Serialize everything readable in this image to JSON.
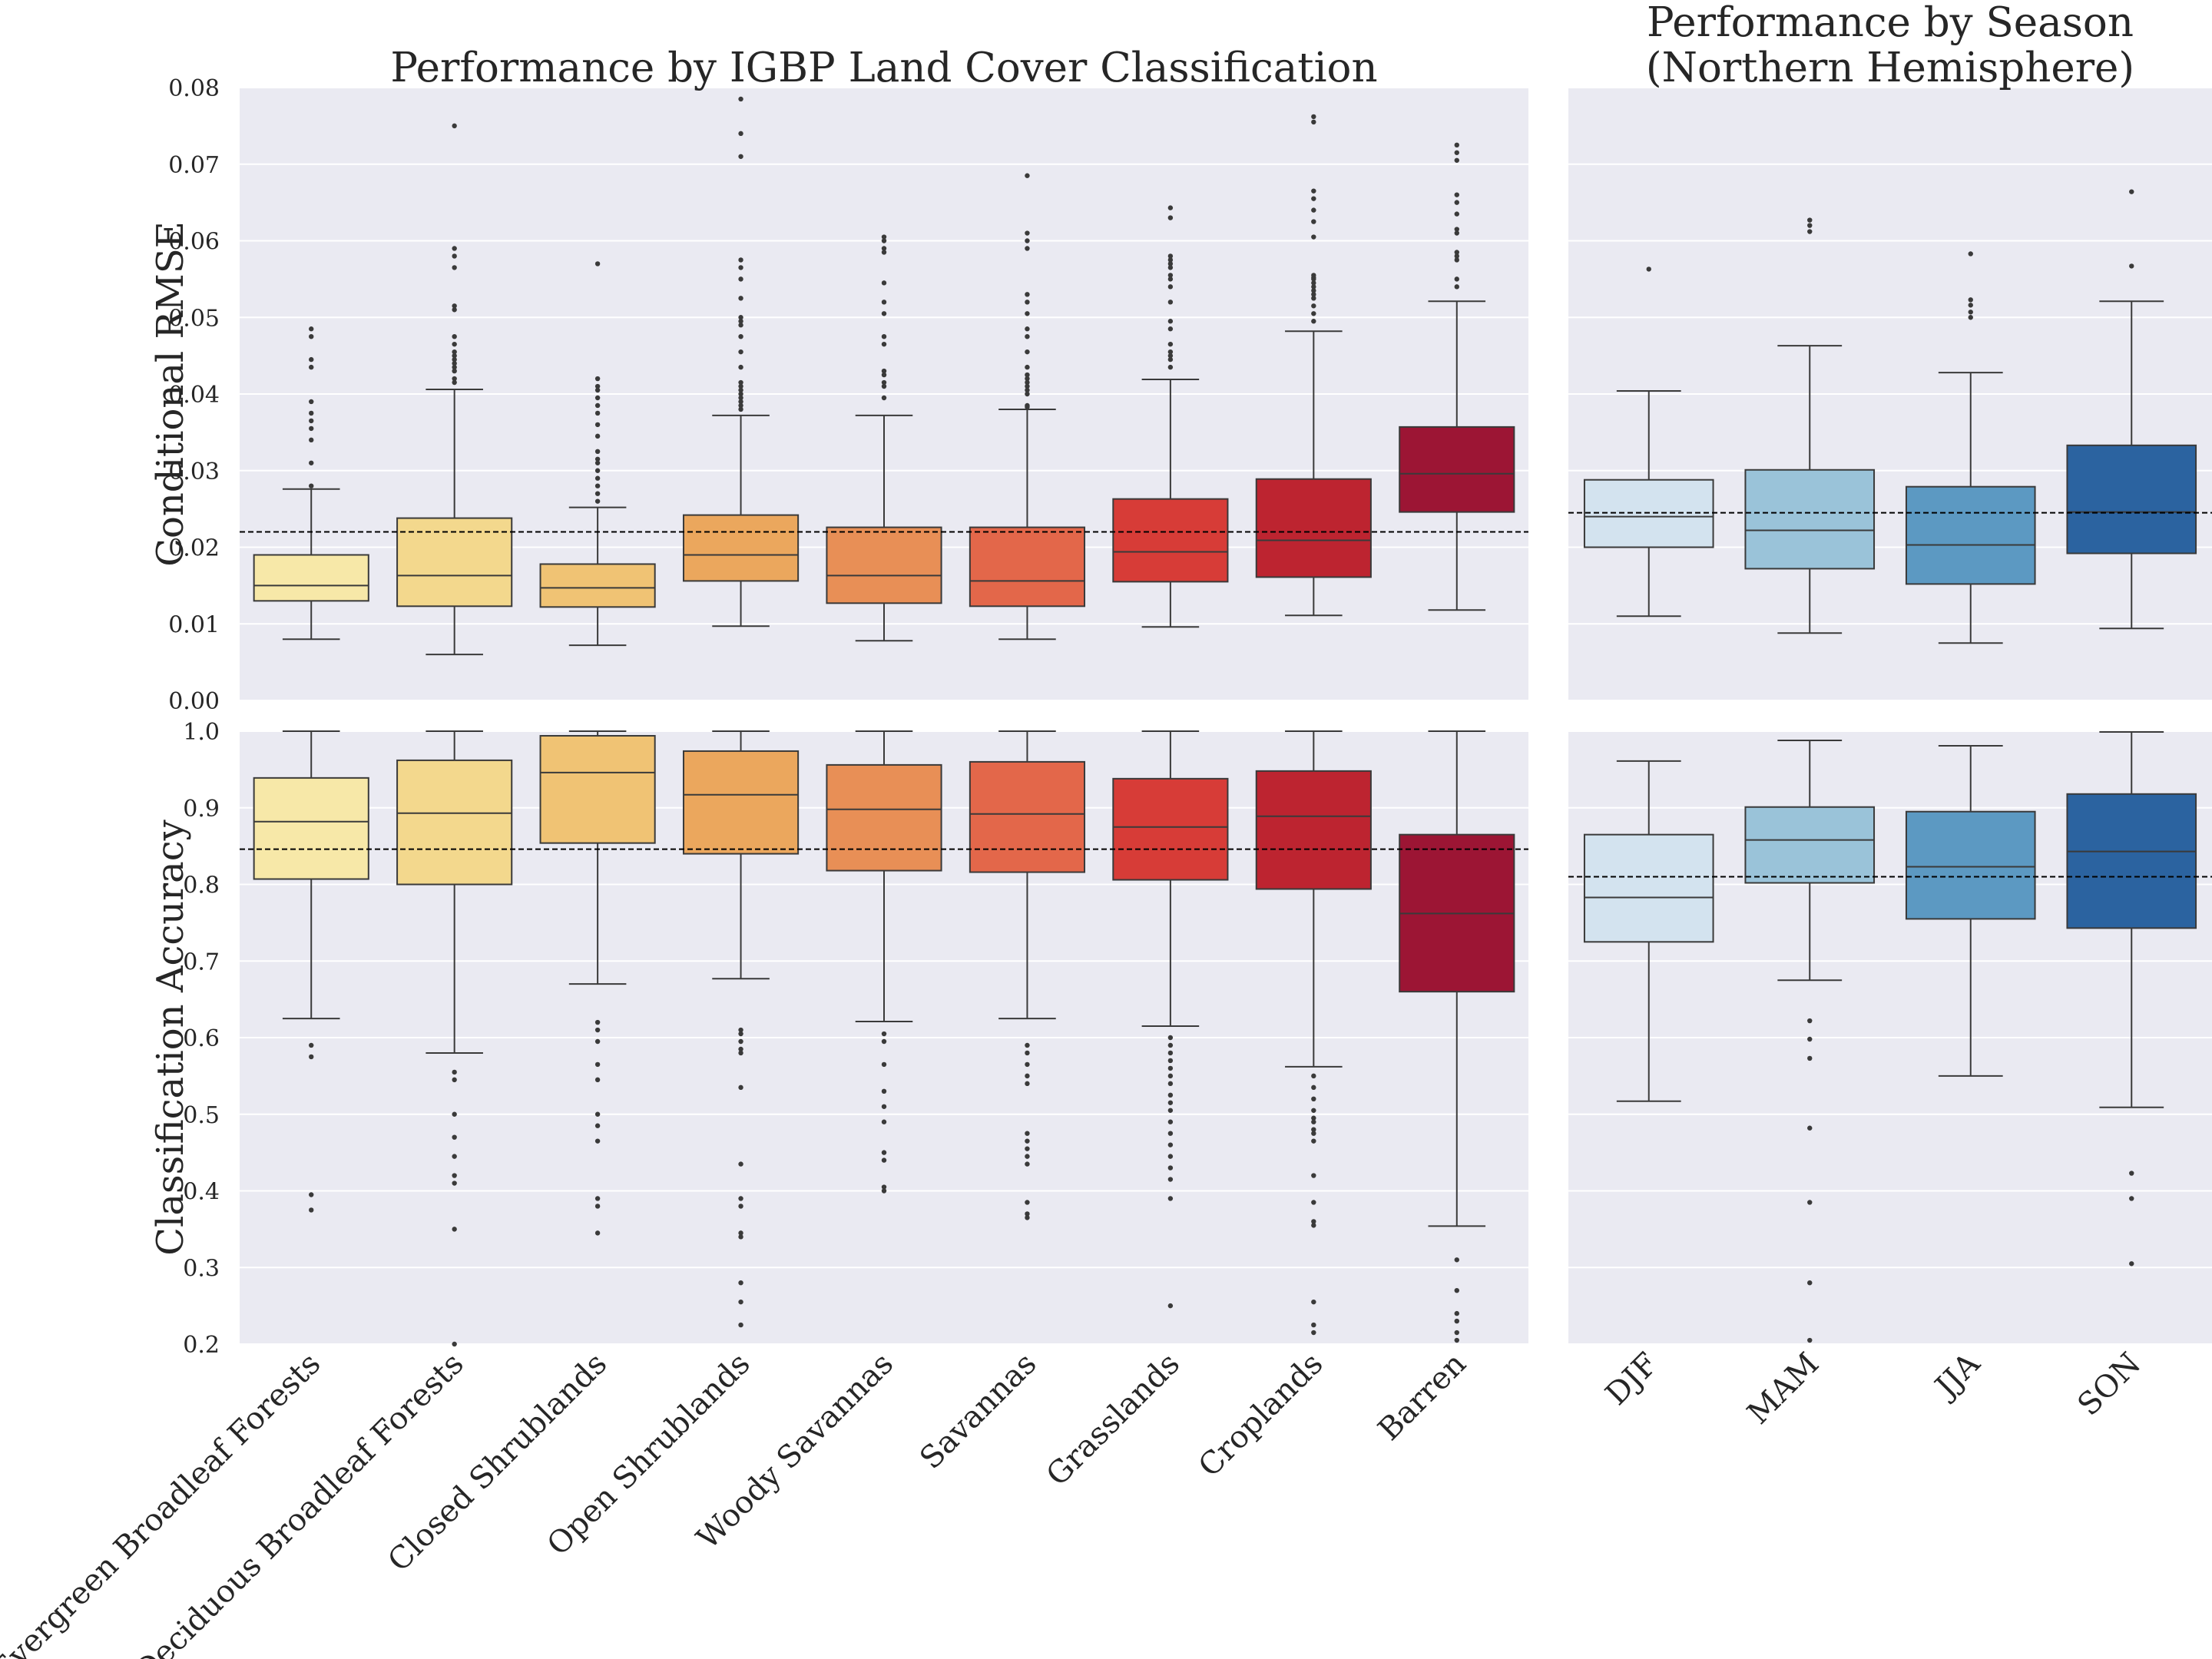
{
  "chart_data": [
    {
      "type": "box",
      "title": "Performance by IGBP Land Cover Classification",
      "ylabel": "Conditional RMSE",
      "ylim": [
        0,
        0.08
      ],
      "yticks": [
        0.0,
        0.01,
        0.02,
        0.03,
        0.04,
        0.05,
        0.06,
        0.07,
        0.08
      ],
      "ytick_labels": [
        "0.00",
        "0.01",
        "0.02",
        "0.03",
        "0.04",
        "0.05",
        "0.06",
        "0.07",
        "0.08"
      ],
      "reference_line": 0.022,
      "categories": [
        "Evergreen Broadleaf Forests",
        "Deciduous Broadleaf Forests",
        "Closed Shrublands",
        "Open Shrublands",
        "Woody Savannas",
        "Savannas",
        "Grasslands",
        "Croplands",
        "Barren"
      ],
      "colors": [
        "#f7e8a8",
        "#f3d88d",
        "#f0c374",
        "#eba75d",
        "#e88f56",
        "#e3674a",
        "#d73c37",
        "#bd2430",
        "#9c1534"
      ],
      "boxes": [
        {
          "whislo": 0.008,
          "q1": 0.013,
          "median": 0.015,
          "q3": 0.019,
          "whishi": 0.0276,
          "fliers": [
            0.0485,
            0.0475,
            0.0445,
            0.0435,
            0.039,
            0.0375,
            0.0365,
            0.0355,
            0.034,
            0.031,
            0.028
          ]
        },
        {
          "whislo": 0.006,
          "q1": 0.0123,
          "median": 0.0163,
          "q3": 0.0238,
          "whishi": 0.0406,
          "fliers": [
            0.075,
            0.059,
            0.058,
            0.0565,
            0.0515,
            0.051,
            0.0475,
            0.0465,
            0.0455,
            0.045,
            0.0445,
            0.044,
            0.0435,
            0.043,
            0.042,
            0.0415
          ]
        },
        {
          "whislo": 0.0072,
          "q1": 0.0122,
          "median": 0.0147,
          "q3": 0.0178,
          "whishi": 0.0252,
          "fliers": [
            0.057,
            0.042,
            0.041,
            0.0405,
            0.0395,
            0.0385,
            0.0375,
            0.036,
            0.0345,
            0.0325,
            0.0315,
            0.031,
            0.03,
            0.029,
            0.028,
            0.027,
            0.026
          ]
        },
        {
          "whislo": 0.0097,
          "q1": 0.0156,
          "median": 0.019,
          "q3": 0.0242,
          "whishi": 0.0372,
          "fliers": [
            0.0785,
            0.074,
            0.071,
            0.0575,
            0.0565,
            0.055,
            0.0525,
            0.05,
            0.0495,
            0.049,
            0.0475,
            0.0455,
            0.0435,
            0.0415,
            0.041,
            0.0405,
            0.04,
            0.0395,
            0.039,
            0.0385,
            0.038
          ]
        },
        {
          "whislo": 0.0078,
          "q1": 0.0127,
          "median": 0.0163,
          "q3": 0.0226,
          "whishi": 0.0372,
          "fliers": [
            0.0605,
            0.06,
            0.059,
            0.0585,
            0.0545,
            0.052,
            0.0505,
            0.0475,
            0.0465,
            0.043,
            0.0425,
            0.0415,
            0.041,
            0.0395
          ]
        },
        {
          "whislo": 0.008,
          "q1": 0.0123,
          "median": 0.0156,
          "q3": 0.0226,
          "whishi": 0.038,
          "fliers": [
            0.0685,
            0.061,
            0.06,
            0.059,
            0.053,
            0.052,
            0.0505,
            0.0485,
            0.0475,
            0.0455,
            0.0435,
            0.0425,
            0.042,
            0.0415,
            0.041,
            0.0405,
            0.04,
            0.0385,
            0.0383
          ]
        },
        {
          "whislo": 0.0096,
          "q1": 0.0155,
          "median": 0.0194,
          "q3": 0.0263,
          "whishi": 0.0419,
          "fliers": [
            0.0643,
            0.063,
            0.058,
            0.0575,
            0.057,
            0.0565,
            0.0555,
            0.055,
            0.054,
            0.052,
            0.0495,
            0.0485,
            0.0465,
            0.0455,
            0.045,
            0.0445,
            0.0435
          ]
        },
        {
          "whislo": 0.0111,
          "q1": 0.0161,
          "median": 0.0209,
          "q3": 0.0289,
          "whishi": 0.0482,
          "fliers": [
            0.0762,
            0.0755,
            0.0665,
            0.0655,
            0.064,
            0.0625,
            0.0605,
            0.0555,
            0.0552,
            0.055,
            0.0545,
            0.054,
            0.0535,
            0.053,
            0.0525,
            0.0515,
            0.0505,
            0.0495
          ]
        },
        {
          "whislo": 0.0118,
          "q1": 0.0246,
          "median": 0.0296,
          "q3": 0.0357,
          "whishi": 0.0521,
          "fliers": [
            0.0725,
            0.0715,
            0.0705,
            0.066,
            0.065,
            0.0635,
            0.0615,
            0.061,
            0.0585,
            0.058,
            0.0575,
            0.055,
            0.054
          ]
        }
      ]
    },
    {
      "type": "box",
      "title": "Performance by Season\n(Northern Hemisphere)",
      "title_lines": [
        "Performance by Season",
        "(Northern Hemisphere)"
      ],
      "ylabel": "",
      "ylim": [
        0,
        0.08
      ],
      "reference_line": 0.0245,
      "categories": [
        "DJF",
        "MAM",
        "JJA",
        "SON"
      ],
      "colors": [
        "#d3e3ef",
        "#9ac3d9",
        "#5c99c2",
        "#2b63a0"
      ],
      "boxes": [
        {
          "whislo": 0.011,
          "q1": 0.02,
          "median": 0.024,
          "q3": 0.0288,
          "whishi": 0.0404,
          "fliers": [
            0.0563
          ]
        },
        {
          "whislo": 0.0088,
          "q1": 0.0172,
          "median": 0.0222,
          "q3": 0.0301,
          "whishi": 0.0463,
          "fliers": [
            0.0627,
            0.062,
            0.0612
          ]
        },
        {
          "whislo": 0.0075,
          "q1": 0.0152,
          "median": 0.0203,
          "q3": 0.0279,
          "whishi": 0.0428,
          "fliers": [
            0.0583,
            0.0523,
            0.0516,
            0.0507,
            0.05
          ]
        },
        {
          "whislo": 0.0094,
          "q1": 0.0192,
          "median": 0.0246,
          "q3": 0.0333,
          "whishi": 0.0521,
          "fliers": [
            0.0664,
            0.0567
          ]
        }
      ]
    },
    {
      "type": "box",
      "title": "",
      "ylabel": "Classification Accuracy",
      "ylim": [
        0.2,
        1.0
      ],
      "yticks": [
        0.2,
        0.3,
        0.4,
        0.5,
        0.6,
        0.7,
        0.8,
        0.9,
        1.0
      ],
      "ytick_labels": [
        "0.2",
        "0.3",
        "0.4",
        "0.5",
        "0.6",
        "0.7",
        "0.8",
        "0.9",
        "1.0"
      ],
      "reference_line": 0.846,
      "categories": [
        "Evergreen Broadleaf Forests",
        "Deciduous Broadleaf Forests",
        "Closed Shrublands",
        "Open Shrublands",
        "Woody Savannas",
        "Savannas",
        "Grasslands",
        "Croplands",
        "Barren"
      ],
      "colors": [
        "#f7e8a8",
        "#f3d88d",
        "#f0c374",
        "#eba75d",
        "#e88f56",
        "#e3674a",
        "#d73c37",
        "#bd2430",
        "#9c1534"
      ],
      "boxes": [
        {
          "whislo": 0.625,
          "q1": 0.807,
          "median": 0.882,
          "q3": 0.939,
          "whishi": 1.0,
          "fliers": [
            0.59,
            0.575,
            0.395,
            0.375
          ]
        },
        {
          "whislo": 0.58,
          "q1": 0.8,
          "median": 0.893,
          "q3": 0.962,
          "whishi": 1.0,
          "fliers": [
            0.555,
            0.545,
            0.5,
            0.47,
            0.445,
            0.42,
            0.41,
            0.35,
            0.2
          ]
        },
        {
          "whislo": 0.67,
          "q1": 0.854,
          "median": 0.946,
          "q3": 0.994,
          "whishi": 1.0,
          "fliers": [
            0.62,
            0.61,
            0.595,
            0.565,
            0.545,
            0.5,
            0.485,
            0.465,
            0.39,
            0.38,
            0.345
          ]
        },
        {
          "whislo": 0.677,
          "q1": 0.84,
          "median": 0.917,
          "q3": 0.974,
          "whishi": 1.0,
          "fliers": [
            0.61,
            0.605,
            0.595,
            0.585,
            0.58,
            0.535,
            0.435,
            0.39,
            0.38,
            0.345,
            0.34,
            0.28,
            0.255,
            0.225
          ]
        },
        {
          "whislo": 0.621,
          "q1": 0.818,
          "median": 0.898,
          "q3": 0.956,
          "whishi": 1.0,
          "fliers": [
            0.605,
            0.595,
            0.565,
            0.53,
            0.51,
            0.49,
            0.45,
            0.44,
            0.405,
            0.4
          ]
        },
        {
          "whislo": 0.625,
          "q1": 0.816,
          "median": 0.892,
          "q3": 0.96,
          "whishi": 1.0,
          "fliers": [
            0.59,
            0.58,
            0.565,
            0.55,
            0.54,
            0.475,
            0.465,
            0.455,
            0.445,
            0.435,
            0.385,
            0.37,
            0.365
          ]
        },
        {
          "whislo": 0.615,
          "q1": 0.806,
          "median": 0.875,
          "q3": 0.938,
          "whishi": 1.0,
          "fliers": [
            0.6,
            0.59,
            0.58,
            0.57,
            0.56,
            0.55,
            0.54,
            0.525,
            0.515,
            0.505,
            0.49,
            0.475,
            0.46,
            0.445,
            0.43,
            0.415,
            0.39,
            0.25
          ]
        },
        {
          "whislo": 0.562,
          "q1": 0.794,
          "median": 0.889,
          "q3": 0.948,
          "whishi": 1.0,
          "fliers": [
            0.55,
            0.535,
            0.52,
            0.505,
            0.495,
            0.49,
            0.48,
            0.475,
            0.465,
            0.42,
            0.385,
            0.36,
            0.355,
            0.255,
            0.225,
            0.215
          ]
        },
        {
          "whislo": 0.354,
          "q1": 0.66,
          "median": 0.762,
          "q3": 0.865,
          "whishi": 1.0,
          "fliers": [
            0.31,
            0.27,
            0.24,
            0.23,
            0.215,
            0.205
          ]
        }
      ]
    },
    {
      "type": "box",
      "title": "",
      "ylabel": "",
      "ylim": [
        0.2,
        1.0
      ],
      "reference_line": 0.81,
      "categories": [
        "DJF",
        "MAM",
        "JJA",
        "SON"
      ],
      "colors": [
        "#d3e3ef",
        "#9ac3d9",
        "#5c99c2",
        "#2b63a0"
      ],
      "boxes": [
        {
          "whislo": 0.517,
          "q1": 0.725,
          "median": 0.783,
          "q3": 0.865,
          "whishi": 0.961,
          "fliers": []
        },
        {
          "whislo": 0.675,
          "q1": 0.802,
          "median": 0.858,
          "q3": 0.901,
          "whishi": 0.988,
          "fliers": [
            0.622,
            0.598,
            0.573,
            0.482,
            0.385,
            0.28,
            0.205
          ]
        },
        {
          "whislo": 0.55,
          "q1": 0.755,
          "median": 0.823,
          "q3": 0.895,
          "whishi": 0.981,
          "fliers": []
        },
        {
          "whislo": 0.509,
          "q1": 0.743,
          "median": 0.843,
          "q3": 0.918,
          "whishi": 0.999,
          "fliers": [
            0.423,
            0.39,
            0.305
          ]
        }
      ]
    }
  ]
}
